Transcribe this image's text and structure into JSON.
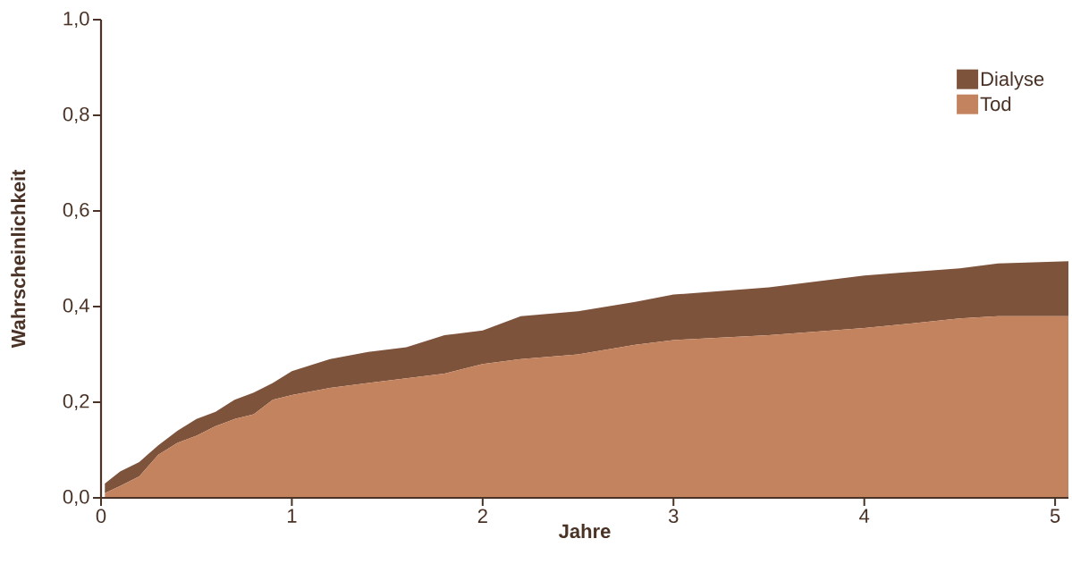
{
  "chart_data": {
    "type": "area",
    "stacked": true,
    "xlabel": "Jahre",
    "ylabel": "Wahrscheinlichkeit",
    "x": [
      0.02,
      0.1,
      0.2,
      0.3,
      0.4,
      0.5,
      0.6,
      0.7,
      0.8,
      0.9,
      1.0,
      1.2,
      1.4,
      1.6,
      1.8,
      2.0,
      2.2,
      2.5,
      2.8,
      3.0,
      3.5,
      4.0,
      4.5,
      4.7,
      5.07
    ],
    "series": [
      {
        "name": "Tod",
        "color": "#c4835f",
        "values": [
          0.01,
          0.025,
          0.045,
          0.09,
          0.115,
          0.13,
          0.15,
          0.165,
          0.175,
          0.205,
          0.215,
          0.23,
          0.24,
          0.25,
          0.26,
          0.28,
          0.29,
          0.3,
          0.32,
          0.33,
          0.34,
          0.355,
          0.375,
          0.38,
          0.38
        ]
      },
      {
        "name": "Dialyse",
        "color": "#7d533c",
        "values": [
          0.02,
          0.03,
          0.03,
          0.02,
          0.025,
          0.035,
          0.03,
          0.04,
          0.045,
          0.035,
          0.05,
          0.06,
          0.065,
          0.065,
          0.08,
          0.07,
          0.09,
          0.09,
          0.09,
          0.095,
          0.1,
          0.11,
          0.105,
          0.11,
          0.115
        ]
      }
    ],
    "xlim": [
      0,
      5.07
    ],
    "ylim": [
      0,
      1
    ],
    "xticks": [
      0,
      1,
      2,
      3,
      4,
      5
    ],
    "yticks": [
      {
        "value": 0,
        "label": "0,0"
      },
      {
        "value": 0.2,
        "label": "0,2"
      },
      {
        "value": 0.4,
        "label": "0,4"
      },
      {
        "value": 0.6,
        "label": "0,6"
      },
      {
        "value": 0.8,
        "label": "0,8"
      },
      {
        "value": 1,
        "label": "1,0"
      }
    ],
    "legend": "top right",
    "grid": false
  }
}
